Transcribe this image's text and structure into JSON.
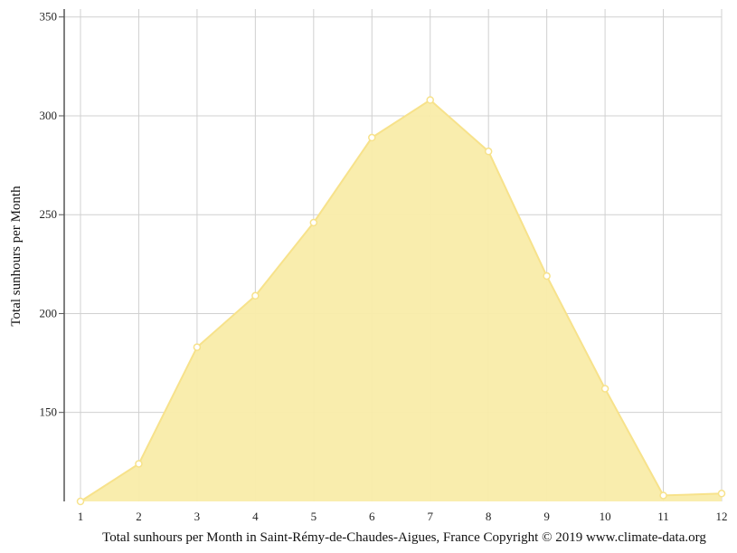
{
  "chart_data": {
    "type": "area",
    "x": [
      1,
      2,
      3,
      4,
      5,
      6,
      7,
      8,
      9,
      10,
      11,
      12
    ],
    "series": [
      {
        "values": [
          105,
          124,
          183,
          209,
          246,
          289,
          308,
          282,
          219,
          162,
          108,
          109
        ]
      }
    ],
    "ylabel": "Total sunhours per Month",
    "xlabel": "",
    "y_ticks": [
      150,
      200,
      250,
      300,
      350
    ],
    "x_ticks": [
      "1",
      "2",
      "3",
      "4",
      "5",
      "6",
      "7",
      "8",
      "9",
      "10",
      "11",
      "12"
    ],
    "ylim": [
      105,
      354
    ],
    "xlim": [
      1,
      12
    ],
    "grid": true,
    "colors": {
      "fill": "#f9eca9",
      "line": "#f7e28b",
      "marker_fill": "#ffffff",
      "grid": "#d0d0d0",
      "axis": "#555555"
    }
  },
  "caption": "Total sunhours per Month in Saint-Rémy-de-Chaudes-Aigues, France Copyright © 2019 www.climate-data.org"
}
